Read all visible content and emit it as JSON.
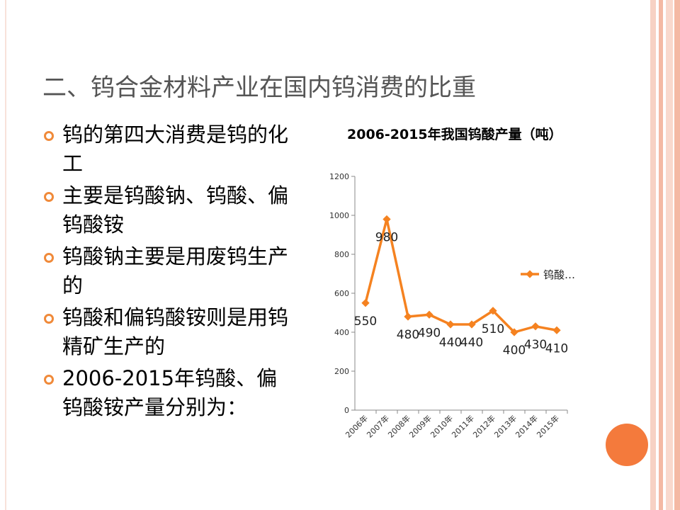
{
  "slide": {
    "title": "二、钨合金材料产业在国内钨消费的比重",
    "bullets": [
      "钨的第四大消费是钨的化工",
      "主要是钨酸钠、钨酸、偏钨酸铵",
      "钨酸钠主要是用废钨生产的",
      "钨酸和偏钨酸铵则是用钨精矿生产的",
      "2006-2015年钨酸、偏钨酸铵产量分别为："
    ]
  },
  "chart_data": {
    "type": "line",
    "title": "2006-2015年我国钨酸产量（吨）",
    "categories": [
      "2006年",
      "2007年",
      "2008年",
      "2009年",
      "2010年",
      "2011年",
      "2012年",
      "2013年",
      "2014年",
      "2015年"
    ],
    "series": [
      {
        "name": "钨酸…",
        "color": "#f58220",
        "values": [
          550,
          980,
          480,
          490,
          440,
          440,
          510,
          400,
          430,
          410
        ]
      }
    ],
    "ylim": [
      0,
      1200
    ],
    "yticks": [
      0,
      200,
      400,
      600,
      800,
      1000,
      1200
    ],
    "legend": "right"
  }
}
